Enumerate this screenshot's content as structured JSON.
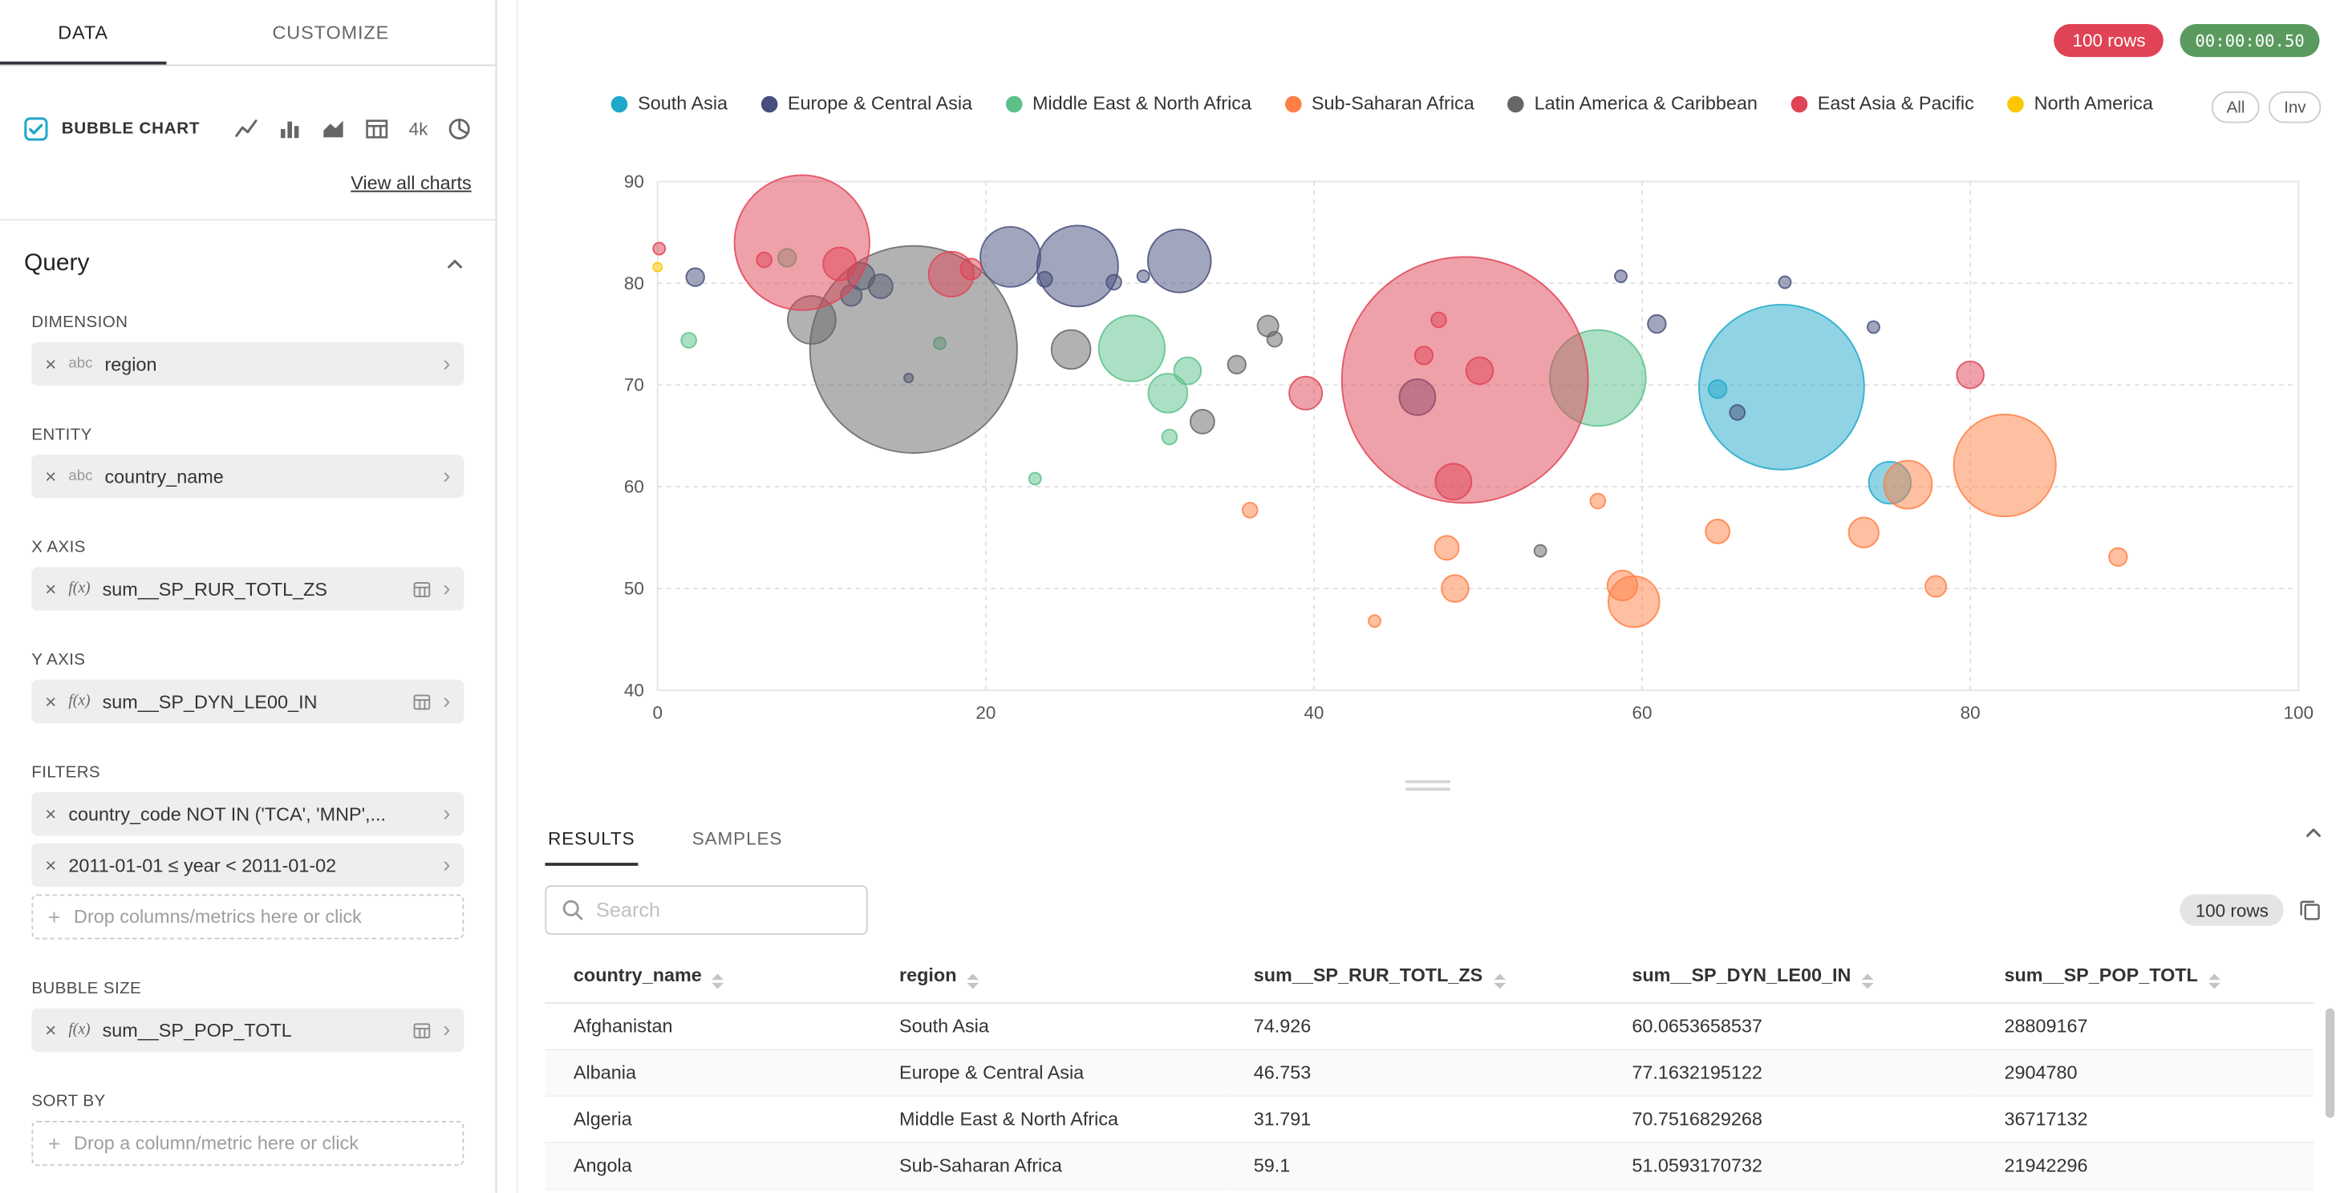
{
  "header": {
    "rows_badge": "100 rows",
    "timer_badge": "00:00:00.50"
  },
  "sidebar": {
    "tabs": [
      "DATA",
      "CUSTOMIZE"
    ],
    "viz": {
      "selected": "BUBBLE CHART",
      "k4": "4k",
      "view_all": "View all charts"
    },
    "query": {
      "title": "Query",
      "controls": [
        {
          "label": "DIMENSION",
          "pills": [
            {
              "kind": "column",
              "prefix": "abc",
              "name": "region"
            }
          ]
        },
        {
          "label": "ENTITY",
          "pills": [
            {
              "kind": "column",
              "prefix": "abc",
              "name": "country_name"
            }
          ]
        },
        {
          "label": "X AXIS",
          "pills": [
            {
              "kind": "metric",
              "prefix": "f(x)",
              "name": "sum__SP_RUR_TOTL_ZS"
            }
          ]
        },
        {
          "label": "Y AXIS",
          "pills": [
            {
              "kind": "metric",
              "prefix": "f(x)",
              "name": "sum__SP_DYN_LE00_IN"
            }
          ]
        },
        {
          "label": "FILTERS",
          "pills": [
            {
              "kind": "filter",
              "name": "country_code NOT IN ('TCA', 'MNP',..."
            },
            {
              "kind": "filter",
              "name": "2011-01-01 ≤ year < 2011-01-02"
            }
          ],
          "dropzone": "Drop columns/metrics here or click"
        },
        {
          "label": "BUBBLE SIZE",
          "pills": [
            {
              "kind": "metric",
              "prefix": "f(x)",
              "name": "sum__SP_POP_TOTL"
            }
          ]
        },
        {
          "label": "SORT BY",
          "pills": [],
          "dropzone": "Drop a column/metric here or click"
        }
      ]
    }
  },
  "chart_data": {
    "type": "scatter",
    "variant": "bubble",
    "title": "",
    "xlabel": "sum__SP_RUR_TOTL_ZS",
    "ylabel": "sum__SP_DYN_LE00_IN",
    "xlim": [
      0,
      100
    ],
    "ylim": [
      40,
      90
    ],
    "x_ticks": [
      0,
      20,
      40,
      60,
      80,
      100
    ],
    "y_ticks": [
      90,
      80,
      70,
      60,
      50,
      40
    ],
    "grid": "dashed",
    "legend_position": "top",
    "legend_controls": [
      "All",
      "Inv"
    ],
    "point_format": "[x, y, radius_px]",
    "series": [
      {
        "name": "South Asia",
        "color": "#1FA8C9",
        "points": [
          [
            64.6,
            69.6,
            6
          ],
          [
            68.5,
            69.8,
            55
          ],
          [
            75.1,
            60.4,
            14
          ]
        ]
      },
      {
        "name": "Europe & Central Asia",
        "color": "#454E7C",
        "points": [
          [
            2.3,
            80.6,
            6
          ],
          [
            12.4,
            80.7,
            9
          ],
          [
            13.6,
            79.7,
            8
          ],
          [
            11.8,
            78.8,
            7
          ],
          [
            21.5,
            82.6,
            20
          ],
          [
            25.6,
            81.7,
            27
          ],
          [
            31.8,
            82.2,
            21
          ],
          [
            23.6,
            80.4,
            5
          ],
          [
            27.8,
            80.1,
            5
          ],
          [
            29.6,
            80.7,
            4
          ],
          [
            46.3,
            68.8,
            12
          ],
          [
            58.7,
            80.7,
            4
          ],
          [
            60.9,
            76,
            6
          ],
          [
            65.8,
            67.3,
            5
          ],
          [
            68.7,
            80.1,
            4
          ],
          [
            74.1,
            75.7,
            4
          ],
          [
            15.3,
            70.7,
            3
          ]
        ]
      },
      {
        "name": "Middle East & North Africa",
        "color": "#5AC189",
        "points": [
          [
            1.9,
            74.4,
            5
          ],
          [
            7.9,
            82.5,
            6
          ],
          [
            28.9,
            73.6,
            22
          ],
          [
            31.1,
            69.2,
            13
          ],
          [
            32.3,
            71.4,
            9
          ],
          [
            23,
            60.8,
            4
          ],
          [
            57.3,
            70.7,
            32
          ],
          [
            17.2,
            74.1,
            4
          ],
          [
            31.2,
            64.9,
            5
          ]
        ]
      },
      {
        "name": "Sub-Saharan Africa",
        "color": "#FF7F44",
        "points": [
          [
            36.1,
            57.7,
            5
          ],
          [
            43.7,
            46.8,
            4
          ],
          [
            48.1,
            54,
            8
          ],
          [
            48.6,
            50,
            9
          ],
          [
            58.8,
            50.3,
            10
          ],
          [
            59.5,
            48.7,
            17
          ],
          [
            57.3,
            58.6,
            5
          ],
          [
            76.2,
            60.2,
            16
          ],
          [
            73.5,
            55.5,
            10
          ],
          [
            82.1,
            62.1,
            34
          ],
          [
            77.9,
            50.2,
            7
          ],
          [
            64.6,
            55.6,
            8
          ],
          [
            89,
            53.1,
            6
          ]
        ]
      },
      {
        "name": "Latin America & Caribbean",
        "color": "#666666",
        "points": [
          [
            9.4,
            76.4,
            16
          ],
          [
            15.6,
            73.5,
            69
          ],
          [
            25.2,
            73.5,
            13
          ],
          [
            33.2,
            66.4,
            8
          ],
          [
            35.3,
            72,
            6
          ],
          [
            37.2,
            75.8,
            7
          ],
          [
            37.6,
            74.5,
            5
          ],
          [
            53.8,
            53.7,
            4
          ]
        ]
      },
      {
        "name": "East Asia & Pacific",
        "color": "#E04355",
        "points": [
          [
            0.1,
            83.4,
            4
          ],
          [
            8.8,
            84,
            45
          ],
          [
            6.5,
            82.3,
            5
          ],
          [
            11.1,
            81.9,
            11
          ],
          [
            17.9,
            80.9,
            15
          ],
          [
            19.1,
            81.4,
            7
          ],
          [
            39.5,
            69.2,
            11
          ],
          [
            49.2,
            70.5,
            82
          ],
          [
            48.5,
            60.5,
            12
          ],
          [
            46.7,
            72.9,
            6
          ],
          [
            47.6,
            76.4,
            5
          ],
          [
            50.1,
            71.4,
            9
          ],
          [
            80,
            71,
            9
          ]
        ]
      },
      {
        "name": "North America",
        "color": "#FCC700",
        "points": [
          [
            0,
            81.6,
            3
          ]
        ]
      }
    ]
  },
  "results": {
    "tabs": [
      "RESULTS",
      "SAMPLES"
    ],
    "search_placeholder": "Search",
    "rows_badge": "100 rows",
    "table": {
      "columns": [
        "country_name",
        "region",
        "sum__SP_RUR_TOTL_ZS",
        "sum__SP_DYN_LE00_IN",
        "sum__SP_POP_TOTL"
      ],
      "rows": [
        [
          "Afghanistan",
          "South Asia",
          "74.926",
          "60.0653658537",
          "28809167"
        ],
        [
          "Albania",
          "Europe & Central Asia",
          "46.753",
          "77.1632195122",
          "2904780"
        ],
        [
          "Algeria",
          "Middle East & North Africa",
          "31.791",
          "70.7516829268",
          "36717132"
        ],
        [
          "Angola",
          "Sub-Saharan Africa",
          "59.1",
          "51.0593170732",
          "21942296"
        ]
      ]
    }
  }
}
